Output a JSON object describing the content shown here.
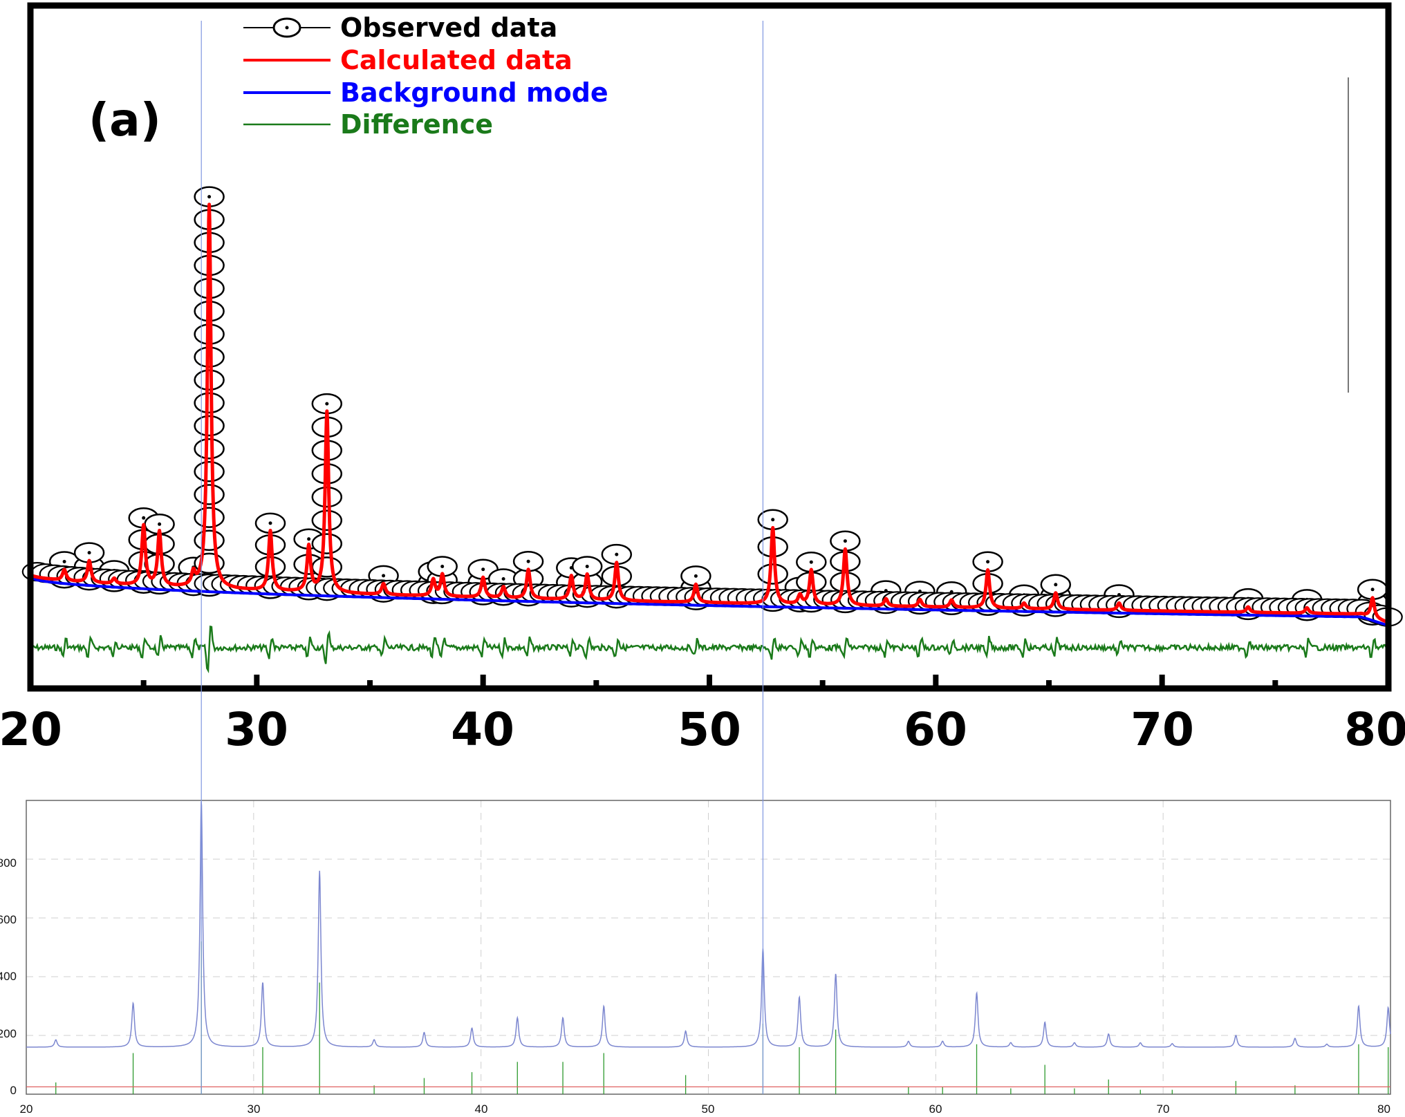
{
  "colors": {
    "observed": "#000000",
    "calculated": "#ff0000",
    "background": "#0000ff",
    "difference": "#1a7a1a",
    "pattern": "#7b86cf",
    "reference_sticks": "#2e9a2e",
    "baseline": "#e06060",
    "guide": "#7f96e0",
    "grid": "#cfcfcf"
  },
  "chart_data": [
    {
      "type": "line",
      "panel_label": "(a)",
      "xlim": [
        20,
        80
      ],
      "x_ticks": [
        "20",
        "30",
        "40",
        "50",
        "60",
        "70",
        "80"
      ],
      "legend": [
        {
          "name": "Observed data",
          "marker": "circle",
          "color_key": "observed"
        },
        {
          "name": "Calculated data",
          "color_key": "calculated"
        },
        {
          "name": "Background mode",
          "color_key": "background"
        },
        {
          "name": "Difference",
          "color_key": "difference"
        }
      ],
      "peaks": [
        {
          "x": 21.5,
          "h": 0.06
        },
        {
          "x": 22.6,
          "h": 0.12
        },
        {
          "x": 23.7,
          "h": 0.03
        },
        {
          "x": 25.0,
          "h": 0.33
        },
        {
          "x": 25.7,
          "h": 0.3
        },
        {
          "x": 27.2,
          "h": 0.07
        },
        {
          "x": 27.9,
          "h": 2.12
        },
        {
          "x": 30.6,
          "h": 0.33
        },
        {
          "x": 32.3,
          "h": 0.25
        },
        {
          "x": 33.1,
          "h": 1.0
        },
        {
          "x": 35.6,
          "h": 0.06
        },
        {
          "x": 37.8,
          "h": 0.09
        },
        {
          "x": 38.2,
          "h": 0.12
        },
        {
          "x": 40.0,
          "h": 0.11
        },
        {
          "x": 40.9,
          "h": 0.06
        },
        {
          "x": 42.0,
          "h": 0.16
        },
        {
          "x": 43.9,
          "h": 0.13
        },
        {
          "x": 44.6,
          "h": 0.14
        },
        {
          "x": 45.9,
          "h": 0.21
        },
        {
          "x": 49.4,
          "h": 0.1
        },
        {
          "x": 52.8,
          "h": 0.42
        },
        {
          "x": 54.0,
          "h": 0.05
        },
        {
          "x": 54.5,
          "h": 0.19
        },
        {
          "x": 56.0,
          "h": 0.31
        },
        {
          "x": 57.8,
          "h": 0.04
        },
        {
          "x": 59.3,
          "h": 0.04
        },
        {
          "x": 60.7,
          "h": 0.04
        },
        {
          "x": 62.3,
          "h": 0.21
        },
        {
          "x": 63.9,
          "h": 0.03
        },
        {
          "x": 65.3,
          "h": 0.09
        },
        {
          "x": 68.1,
          "h": 0.04
        },
        {
          "x": 73.8,
          "h": 0.03
        },
        {
          "x": 76.4,
          "h": 0.03
        },
        {
          "x": 79.3,
          "h": 0.11
        }
      ]
    },
    {
      "type": "line",
      "xlim": [
        20,
        80
      ],
      "ylim": [
        0,
        1000
      ],
      "x_ticks": [
        "20",
        "30",
        "40",
        "50",
        "60",
        "70",
        "80"
      ],
      "y_ticks": [
        "0",
        "200",
        "400",
        "600",
        "800"
      ],
      "y_tick_values": [
        0,
        200,
        400,
        600,
        800
      ],
      "baseline_intensity": 160,
      "reference_level": 25,
      "peaks": [
        {
          "x": 21.3,
          "i": 185
        },
        {
          "x": 24.7,
          "i": 310
        },
        {
          "x": 27.7,
          "i": 1000
        },
        {
          "x": 30.4,
          "i": 380
        },
        {
          "x": 32.9,
          "i": 760
        },
        {
          "x": 35.3,
          "i": 185
        },
        {
          "x": 37.5,
          "i": 210
        },
        {
          "x": 39.6,
          "i": 225
        },
        {
          "x": 41.6,
          "i": 260
        },
        {
          "x": 43.6,
          "i": 260
        },
        {
          "x": 45.4,
          "i": 300
        },
        {
          "x": 49.0,
          "i": 215
        },
        {
          "x": 52.4,
          "i": 495
        },
        {
          "x": 54.0,
          "i": 330
        },
        {
          "x": 55.6,
          "i": 410
        },
        {
          "x": 58.8,
          "i": 180
        },
        {
          "x": 60.3,
          "i": 180
        },
        {
          "x": 61.8,
          "i": 345
        },
        {
          "x": 63.3,
          "i": 175
        },
        {
          "x": 64.8,
          "i": 245
        },
        {
          "x": 66.1,
          "i": 175
        },
        {
          "x": 67.6,
          "i": 205
        },
        {
          "x": 69.0,
          "i": 175
        },
        {
          "x": 70.4,
          "i": 172
        },
        {
          "x": 73.2,
          "i": 200
        },
        {
          "x": 75.8,
          "i": 190
        },
        {
          "x": 77.2,
          "i": 170
        },
        {
          "x": 78.6,
          "i": 300
        },
        {
          "x": 79.9,
          "i": 295
        }
      ],
      "sticks": [
        {
          "x": 21.3,
          "i": 40
        },
        {
          "x": 24.7,
          "i": 140
        },
        {
          "x": 27.7,
          "i": 520
        },
        {
          "x": 30.4,
          "i": 160
        },
        {
          "x": 32.9,
          "i": 380
        },
        {
          "x": 35.3,
          "i": 30
        },
        {
          "x": 37.5,
          "i": 55
        },
        {
          "x": 39.6,
          "i": 75
        },
        {
          "x": 41.6,
          "i": 110
        },
        {
          "x": 43.6,
          "i": 110
        },
        {
          "x": 45.4,
          "i": 140
        },
        {
          "x": 49.0,
          "i": 65
        },
        {
          "x": 52.4,
          "i": 240
        },
        {
          "x": 54.0,
          "i": 160
        },
        {
          "x": 55.6,
          "i": 220
        },
        {
          "x": 58.8,
          "i": 25
        },
        {
          "x": 60.3,
          "i": 25
        },
        {
          "x": 61.8,
          "i": 170
        },
        {
          "x": 63.3,
          "i": 20
        },
        {
          "x": 64.8,
          "i": 100
        },
        {
          "x": 66.1,
          "i": 20
        },
        {
          "x": 67.6,
          "i": 50
        },
        {
          "x": 69.0,
          "i": 15
        },
        {
          "x": 70.4,
          "i": 15
        },
        {
          "x": 73.2,
          "i": 45
        },
        {
          "x": 75.8,
          "i": 30
        },
        {
          "x": 78.6,
          "i": 170
        },
        {
          "x": 79.9,
          "i": 160
        }
      ]
    }
  ],
  "guide_lines_x": [
    27.7,
    52.4
  ]
}
